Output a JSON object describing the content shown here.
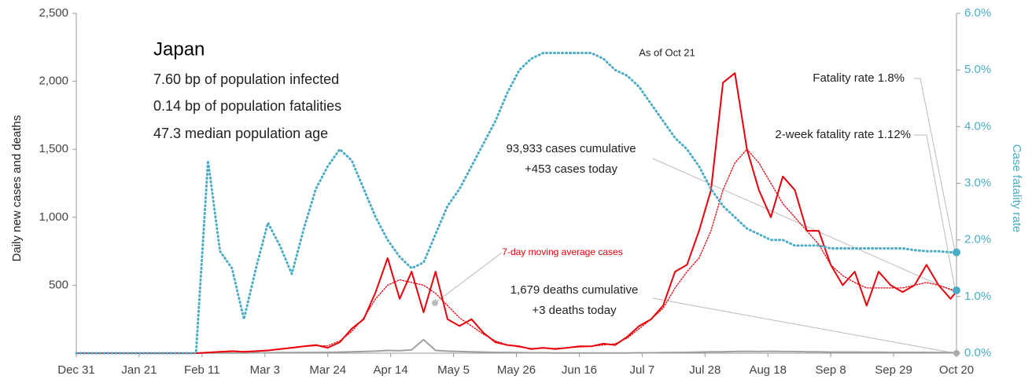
{
  "chart_data": {
    "type": "line",
    "annotations": [
      "Japan",
      "7.60 bp of population infected",
      "0.14 bp of population fatalities",
      "47.3 median population age",
      "As of Oct 21",
      "Fatality rate 1.8%",
      "2-week fatality rate 1.12%",
      "93,933 cases cumulative",
      "+453 cases today",
      "1,679 deaths cumulative",
      "+3 deaths today",
      "7-day moving average cases"
    ],
    "ylabel": "Daily new cases and deaths",
    "y2label": "Case fatality rate",
    "x": [
      0,
      4,
      8,
      12,
      16,
      20,
      24,
      28,
      32,
      36,
      40,
      44,
      48,
      52,
      56,
      60,
      64,
      68,
      72,
      76,
      80,
      84,
      88,
      92,
      96,
      100,
      104,
      108,
      112,
      116,
      120,
      124,
      128,
      132,
      136,
      140,
      144,
      148,
      152,
      156,
      160,
      164,
      168,
      172,
      176,
      180,
      184,
      188,
      192,
      196,
      200,
      204,
      208,
      212,
      216,
      220,
      224,
      228,
      232,
      236,
      240,
      244,
      248,
      252,
      256,
      260,
      264,
      268,
      272,
      276,
      280,
      284,
      288,
      292,
      294
    ],
    "xlim": [
      0,
      294
    ],
    "xticks": [
      {
        "value": 0,
        "label": "Dec 31"
      },
      {
        "value": 21,
        "label": "Jan 21"
      },
      {
        "value": 42,
        "label": "Feb 11"
      },
      {
        "value": 63,
        "label": "Mar 3"
      },
      {
        "value": 84,
        "label": "Mar 24"
      },
      {
        "value": 105,
        "label": "Apr 14"
      },
      {
        "value": 126,
        "label": "May 5"
      },
      {
        "value": 147,
        "label": "May 26"
      },
      {
        "value": 168,
        "label": "Jun 16"
      },
      {
        "value": 189,
        "label": "Jul 7"
      },
      {
        "value": 210,
        "label": "Jul 28"
      },
      {
        "value": 231,
        "label": "Aug 18"
      },
      {
        "value": 252,
        "label": "Sep 8"
      },
      {
        "value": 273,
        "label": "Sep 29"
      },
      {
        "value": 294,
        "label": "Oct 20"
      }
    ],
    "ylim": [
      0,
      2500
    ],
    "yticks": [
      500,
      {
        "value": 1000,
        "label": "1,000"
      },
      {
        "value": 1500,
        "label": "1,500"
      },
      {
        "value": 2000,
        "label": "2,000"
      },
      {
        "value": 2500,
        "label": "2,500"
      }
    ],
    "y2lim": [
      0,
      6
    ],
    "y2ticks": [
      {
        "value": 0,
        "label": "0.0%"
      },
      {
        "value": 1,
        "label": "1.0%"
      },
      {
        "value": 2,
        "label": "2.0%"
      },
      {
        "value": 3,
        "label": "3.0%"
      },
      {
        "value": 4,
        "label": "4.0%"
      },
      {
        "value": 5,
        "label": "5.0%"
      },
      {
        "value": 6,
        "label": "6.0%"
      }
    ],
    "series": [
      {
        "name": "Daily cases",
        "color": "#e8000b",
        "style": "solid",
        "values": [
          0,
          0,
          0,
          0,
          0,
          0,
          0,
          0,
          0,
          0,
          0,
          5,
          10,
          15,
          10,
          15,
          20,
          30,
          40,
          50,
          60,
          40,
          80,
          180,
          250,
          450,
          700,
          400,
          600,
          300,
          600,
          250,
          200,
          250,
          150,
          80,
          60,
          50,
          30,
          40,
          30,
          40,
          50,
          50,
          70,
          60,
          120,
          200,
          250,
          350,
          600,
          650,
          900,
          1200,
          1990,
          2060,
          1500,
          1200,
          1000,
          1300,
          1200,
          900,
          900,
          650,
          500,
          600,
          350,
          600,
          500,
          450,
          500,
          650,
          500,
          400,
          453
        ]
      },
      {
        "name": "7-day moving average cases",
        "color": "#e8000b",
        "style": "dotted",
        "values": [
          0,
          0,
          0,
          0,
          0,
          0,
          0,
          0,
          0,
          0,
          0,
          3,
          8,
          12,
          12,
          14,
          18,
          28,
          38,
          48,
          55,
          55,
          90,
          160,
          260,
          400,
          500,
          540,
          520,
          500,
          440,
          350,
          260,
          200,
          140,
          90,
          60,
          45,
          35,
          35,
          35,
          40,
          45,
          50,
          60,
          70,
          110,
          180,
          250,
          330,
          480,
          600,
          700,
          900,
          1200,
          1400,
          1500,
          1400,
          1250,
          1100,
          1000,
          900,
          800,
          650,
          570,
          520,
          480,
          480,
          480,
          480,
          500,
          520,
          500,
          470,
          460
        ]
      },
      {
        "name": "Daily deaths",
        "color": "#a0a0a0",
        "style": "solid",
        "values": [
          0,
          0,
          0,
          0,
          0,
          0,
          0,
          0,
          0,
          0,
          0,
          1,
          1,
          2,
          2,
          3,
          3,
          4,
          4,
          5,
          5,
          6,
          8,
          10,
          12,
          15,
          20,
          18,
          25,
          100,
          20,
          15,
          12,
          10,
          8,
          6,
          5,
          4,
          3,
          3,
          2,
          2,
          2,
          2,
          2,
          2,
          2,
          3,
          3,
          4,
          5,
          6,
          8,
          10,
          10,
          12,
          14,
          12,
          14,
          12,
          12,
          10,
          10,
          8,
          8,
          8,
          7,
          7,
          6,
          6,
          6,
          6,
          5,
          4,
          3
        ]
      },
      {
        "name": "Case fatality rate",
        "color": "#4bacc6",
        "style": "dotted",
        "axis": "y2",
        "values": [
          0,
          0,
          0,
          0,
          0,
          0,
          0,
          0,
          0,
          0,
          0,
          3.4,
          1.8,
          1.5,
          0.6,
          1.5,
          2.3,
          1.9,
          1.4,
          2.2,
          2.9,
          3.3,
          3.6,
          3.4,
          2.9,
          2.4,
          2.0,
          1.7,
          1.5,
          1.6,
          2.1,
          2.6,
          2.9,
          3.3,
          3.7,
          4.1,
          4.6,
          5.0,
          5.2,
          5.3,
          5.3,
          5.3,
          5.3,
          5.3,
          5.2,
          5.0,
          4.9,
          4.7,
          4.4,
          4.1,
          3.8,
          3.6,
          3.3,
          2.9,
          2.6,
          2.4,
          2.2,
          2.1,
          2.0,
          2.0,
          1.9,
          1.9,
          1.9,
          1.85,
          1.85,
          1.85,
          1.85,
          1.85,
          1.85,
          1.85,
          1.82,
          1.8,
          1.8,
          1.78,
          1.78
        ]
      }
    ]
  }
}
